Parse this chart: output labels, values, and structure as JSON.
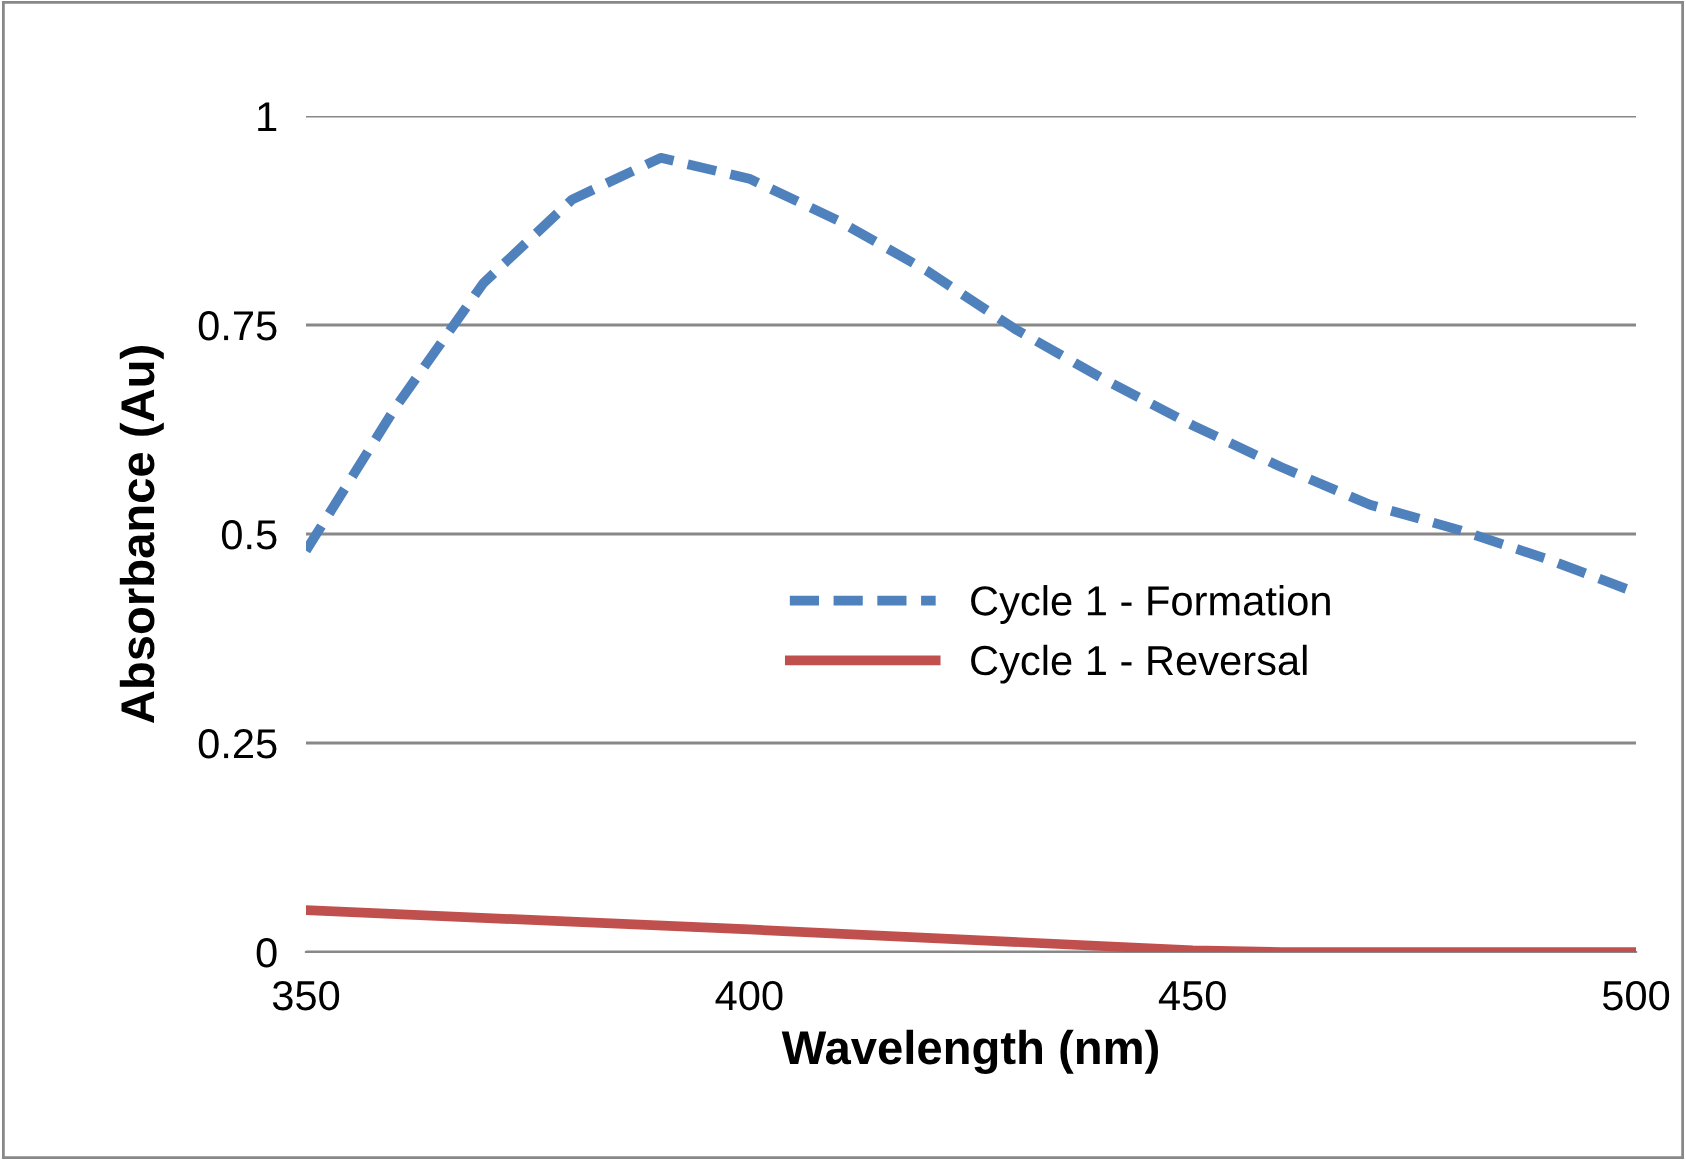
{
  "chart_data": {
    "type": "line",
    "xlabel": "Wavelength (nm)",
    "ylabel": "Absorbance (Au)",
    "xlim": [
      350,
      500
    ],
    "xticks": [
      350,
      400,
      450,
      500
    ],
    "ylim": [
      0,
      1
    ],
    "yticks": [
      0,
      0.25,
      0.5,
      0.75,
      1
    ],
    "grid": "y",
    "legend": "right",
    "marker": "none",
    "series": [
      {
        "name": "Cycle 1 - Formation",
        "color": "#4f81bd",
        "line_style": "dashed",
        "x": [
          350,
          360,
          370,
          380,
          390,
          400,
          410,
          420,
          430,
          440,
          450,
          460,
          470,
          480,
          490,
          500
        ],
        "values": [
          0.48,
          0.65,
          0.8,
          0.9,
          0.95,
          0.925,
          0.875,
          0.815,
          0.745,
          0.685,
          0.63,
          0.58,
          0.535,
          0.505,
          0.47,
          0.43
        ]
      },
      {
        "name": "Cycle 1 - Reversal",
        "color": "#c0504d",
        "line_style": "solid",
        "x": [
          350,
          400,
          450,
          460,
          500
        ],
        "values": [
          0.05,
          0.027,
          0.002,
          0,
          0
        ]
      }
    ]
  }
}
